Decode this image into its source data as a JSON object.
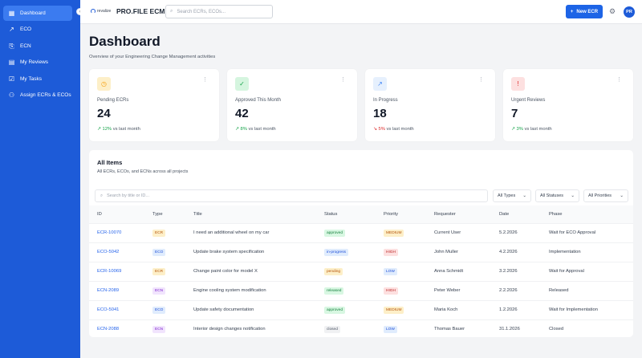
{
  "sidebar": {
    "items": [
      {
        "label": "Dashboard",
        "icon": "dashboard-icon",
        "active": true
      },
      {
        "label": "ECO",
        "icon": "trending-icon"
      },
      {
        "label": "ECN",
        "icon": "document-export-icon"
      },
      {
        "label": "My Reviews",
        "icon": "clipboard-icon"
      },
      {
        "label": "My Tasks",
        "icon": "checkbox-icon"
      },
      {
        "label": "Assign ECRs & ECOs",
        "icon": "user-assign-icon"
      }
    ]
  },
  "header": {
    "logo_text": "revalize",
    "app_title": "PRO.FILE ECM",
    "search_placeholder": "Search ECRs, ECOs...",
    "new_button": "New ECR",
    "avatar": "PR"
  },
  "page": {
    "title": "Dashboard",
    "subtitle": "Overview of your Engineering Change Management activities"
  },
  "cards": [
    {
      "label": "Pending ECRs",
      "value": "24",
      "trend": "12%",
      "trend_dir": "up",
      "trend_suffix": "vs last month",
      "icon": "clock-icon",
      "color": "#f59e0b"
    },
    {
      "label": "Approved This Month",
      "value": "42",
      "trend": "8%",
      "trend_dir": "up",
      "trend_suffix": "vs last month",
      "icon": "check-circle-icon",
      "color": "#16a34a"
    },
    {
      "label": "In Progress",
      "value": "18",
      "trend": "5%",
      "trend_dir": "down",
      "trend_suffix": "vs last month",
      "icon": "trending-icon",
      "color": "#3b82f6"
    },
    {
      "label": "Urgent Reviews",
      "value": "7",
      "trend": "3%",
      "trend_dir": "up",
      "trend_suffix": "vs last month",
      "icon": "alert-circle-icon",
      "color": "#dc2626"
    }
  ],
  "table": {
    "title": "All Items",
    "subtitle": "All ECRs, ECOs, and ECNs across all projects",
    "search_placeholder": "Search by title or ID...",
    "filters": [
      "All Types",
      "All Statuses",
      "All Priorities"
    ],
    "columns": [
      "ID",
      "Type",
      "Title",
      "Status",
      "Priority",
      "Requester",
      "Date",
      "Phase"
    ],
    "rows": [
      {
        "id": "ECR-10070",
        "type": "ECR",
        "title": "I need an additional wheel on my car",
        "status": "approved",
        "priority": "MEDIUM",
        "requester": "Current User",
        "date": "5.2.2026",
        "phase": "Wait for ECO Approval"
      },
      {
        "id": "ECO-5042",
        "type": "ECO",
        "title": "Update brake system specification",
        "status": "in-progress",
        "priority": "HIGH",
        "requester": "John Muller",
        "date": "4.2.2026",
        "phase": "Implementation"
      },
      {
        "id": "ECR-10069",
        "type": "ECR",
        "title": "Change paint color for model X",
        "status": "pending",
        "priority": "LOW",
        "requester": "Anna Schmidt",
        "date": "3.2.2026",
        "phase": "Wait for Approval"
      },
      {
        "id": "ECN-2089",
        "type": "ECN",
        "title": "Engine cooling system modification",
        "status": "released",
        "priority": "HIGH",
        "requester": "Peter Weber",
        "date": "2.2.2026",
        "phase": "Released"
      },
      {
        "id": "ECO-5041",
        "type": "ECO",
        "title": "Update safety documentation",
        "status": "approved",
        "priority": "MEDIUM",
        "requester": "Maria Koch",
        "date": "1.2.2026",
        "phase": "Wait for Implementation"
      },
      {
        "id": "ECN-2088",
        "type": "ECN",
        "title": "Interior design changes notification",
        "status": "closed",
        "priority": "LOW",
        "requester": "Thomas Bauer",
        "date": "31.1.2026",
        "phase": "Closed"
      }
    ]
  }
}
